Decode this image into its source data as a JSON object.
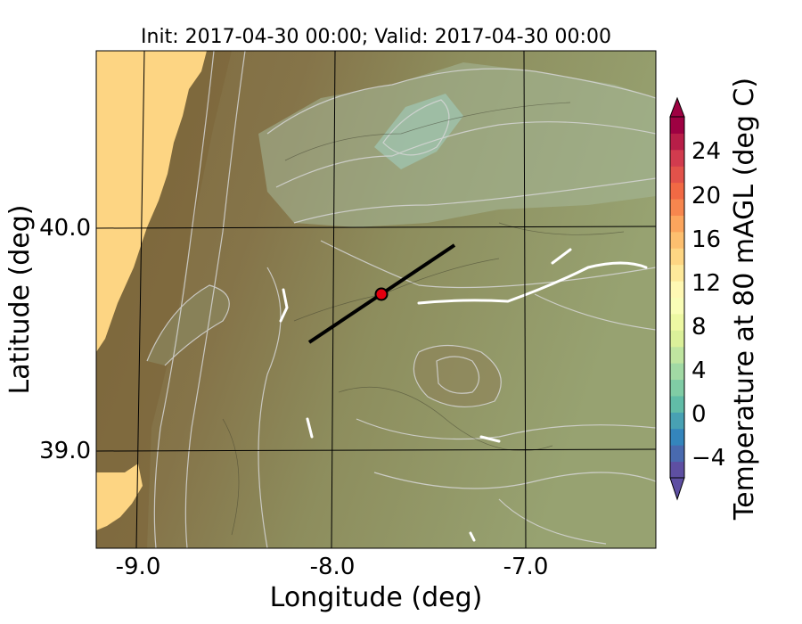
{
  "map": {
    "title": "Init: 2017-04-30 00:00; Valid: 2017-04-30 00:00",
    "xlabel": "Longitude (deg)",
    "ylabel": "Latitude (deg)",
    "lon_ticks": [
      "-9.0",
      "-8.0",
      "-7.0"
    ],
    "lat_ticks": [
      "40.0",
      "39.0"
    ],
    "cross_section": {
      "start": [
        -8.1,
        39.5
      ],
      "end": [
        -7.4,
        39.9
      ]
    },
    "site_marker": {
      "lon": -7.75,
      "lat": 39.7,
      "color": "#e3000f"
    },
    "colors": {
      "terrain_low": "#8a7040",
      "terrain_mid": "#8f9464",
      "terrain_high": "#a4b895",
      "ocean": "#fdd583",
      "contour": "#d6d6d6",
      "grid": "#000000"
    }
  },
  "colorbar": {
    "label": "Temperature at 80 mAGL (deg C)",
    "ticks": [
      "24",
      "20",
      "16",
      "12",
      "8",
      "4",
      "0",
      "−4"
    ],
    "colors": [
      "#5e4fa2",
      "#3288bd",
      "#66c2a5",
      "#abdda4",
      "#e6f598",
      "#ffffbf",
      "#fee08b",
      "#fdae61",
      "#f46d43",
      "#d53e4f",
      "#9e0142"
    ]
  }
}
